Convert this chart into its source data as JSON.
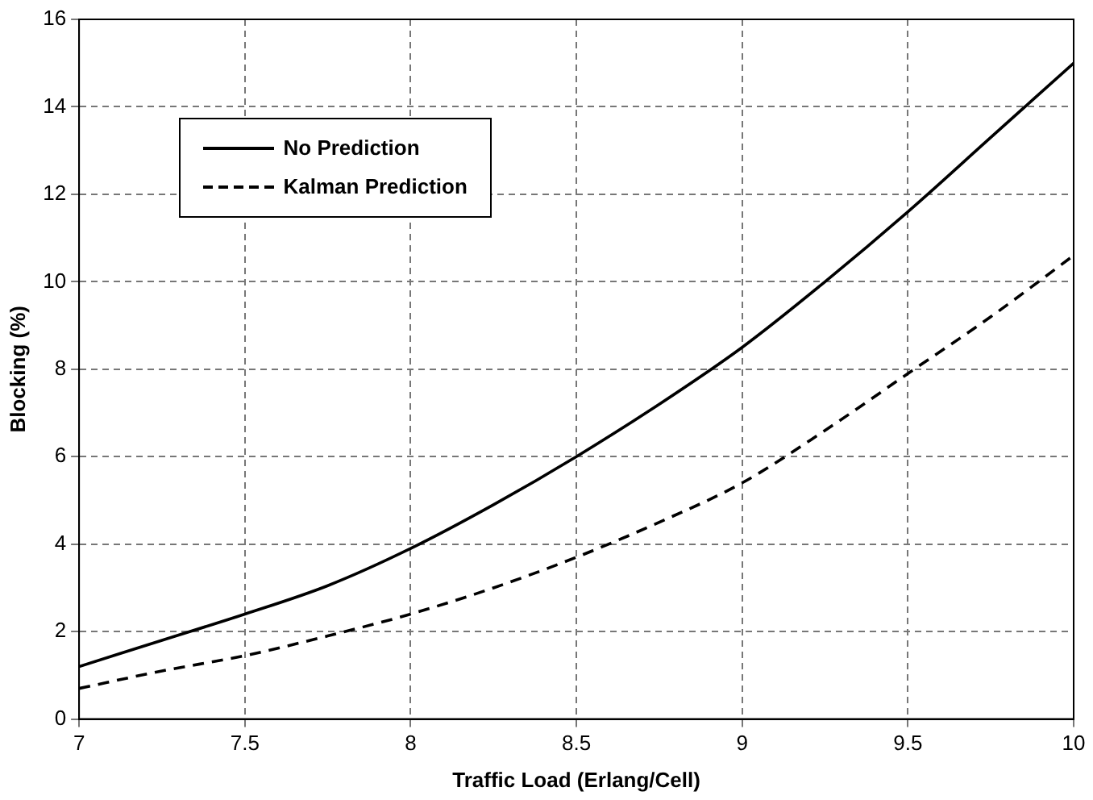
{
  "chart_data": {
    "type": "line",
    "xlabel": "Traffic Load (Erlang/Cell)",
    "ylabel": "Blocking (%)",
    "x": [
      7,
      7.25,
      7.5,
      7.75,
      8,
      8.25,
      8.5,
      8.75,
      9,
      9.25,
      9.5,
      9.75,
      10
    ],
    "series": [
      {
        "name": "No Prediction",
        "color": "#000000",
        "line_style": "solid",
        "values": [
          1.2,
          1.8,
          2.4,
          3.05,
          3.9,
          4.9,
          6.0,
          7.2,
          8.5,
          10.0,
          11.6,
          13.3,
          15.0
        ]
      },
      {
        "name": "Kalman Prediction",
        "color": "#000000",
        "line_style": "dashed",
        "values": [
          0.7,
          1.1,
          1.45,
          1.9,
          2.4,
          3.0,
          3.7,
          4.5,
          5.4,
          6.6,
          7.9,
          9.2,
          10.6
        ]
      }
    ],
    "xlim": [
      7,
      10
    ],
    "xticks": [
      7,
      7.5,
      8,
      8.5,
      9,
      9.5,
      10
    ],
    "ylim": [
      0,
      16
    ],
    "yticks": [
      0,
      2,
      4,
      6,
      8,
      10,
      12,
      14,
      16
    ],
    "grid": true,
    "legend": "top left",
    "marker": "none"
  }
}
